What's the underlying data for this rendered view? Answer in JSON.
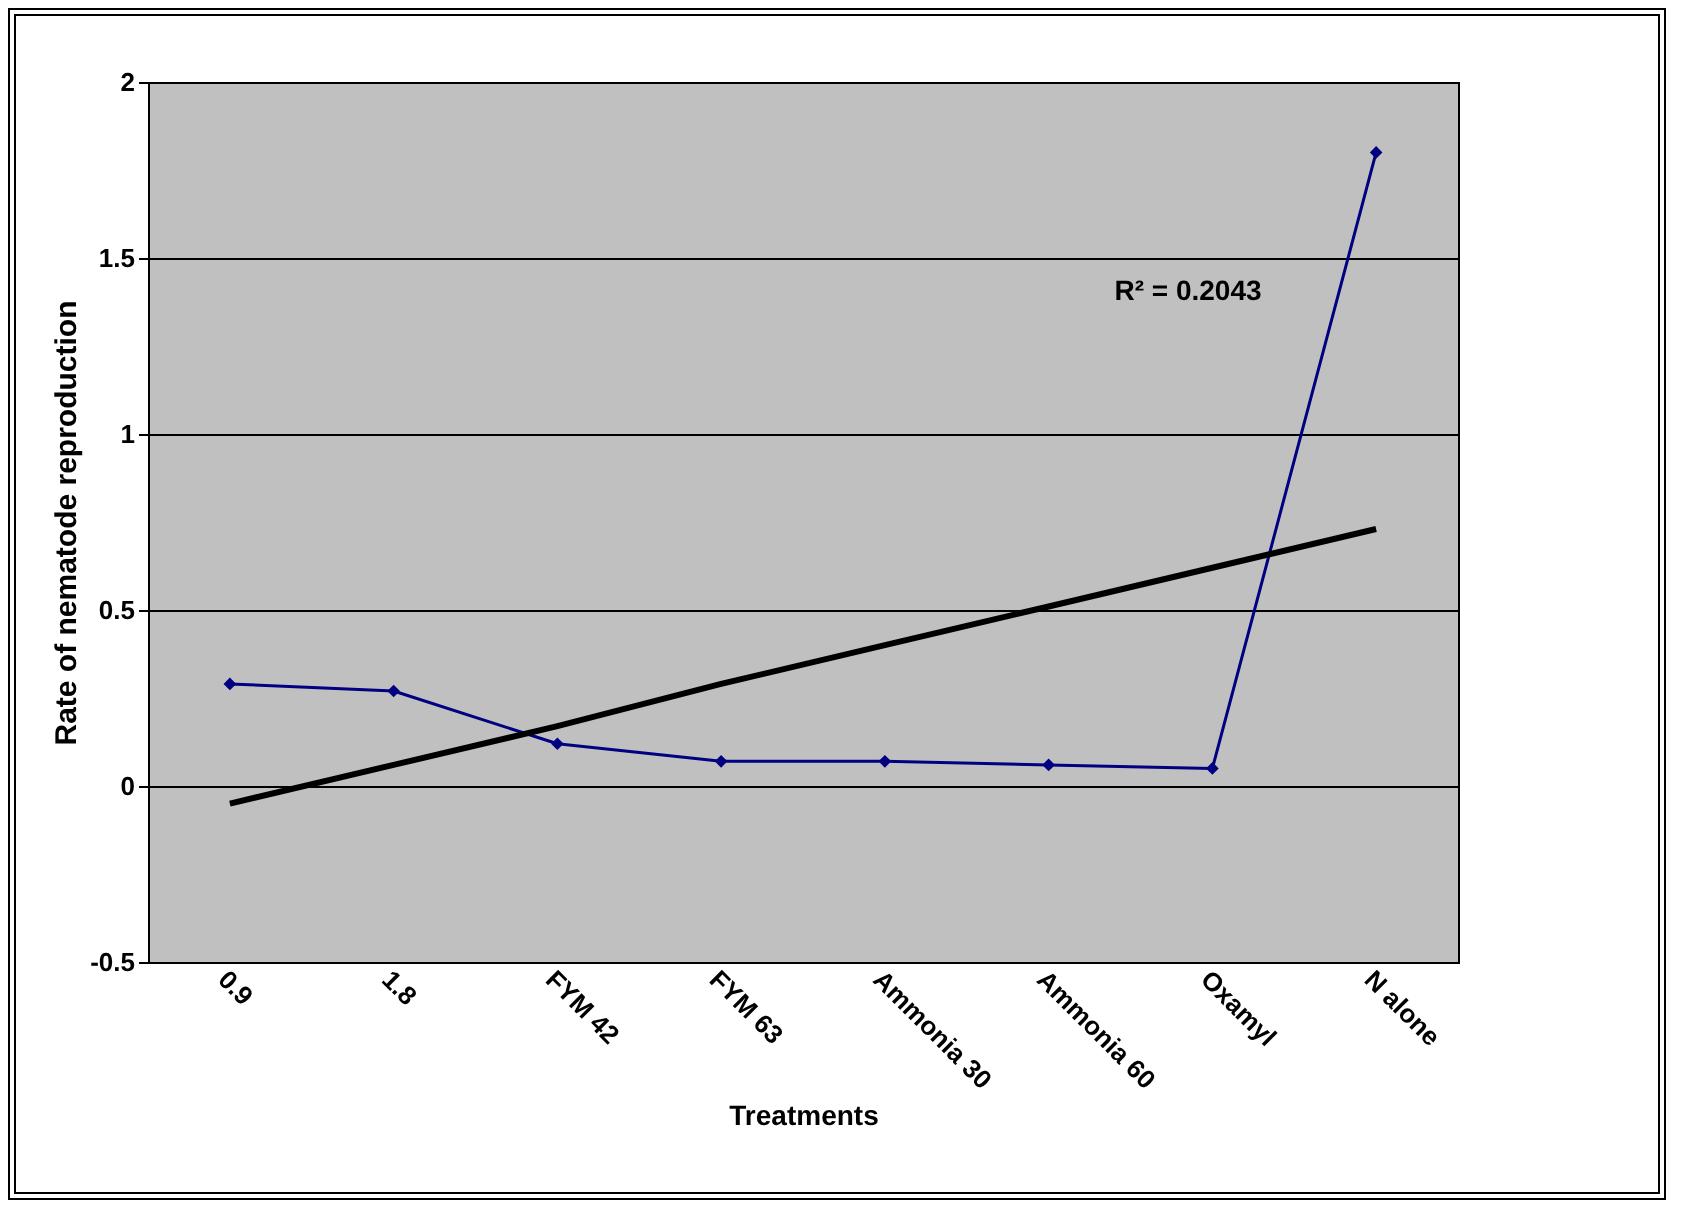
{
  "chart_data": {
    "type": "line",
    "xlabel": "Treatments",
    "ylabel": "Rate of nematode reproduction",
    "categories": [
      "0.9",
      "1.8",
      "FYM 42",
      "FYM 63",
      "Ammonia 30",
      "Ammonia 60",
      "Oxamyl",
      "N alone"
    ],
    "series": [
      {
        "color": "#000080",
        "marker": "diamond",
        "values": [
          0.29,
          0.27,
          0.12,
          0.07,
          0.07,
          0.06,
          0.05,
          1.8
        ]
      },
      {
        "color": "#000000",
        "marker": "none",
        "values": [
          -0.05,
          0.06,
          0.17,
          0.29,
          0.4,
          0.51,
          0.62,
          0.73
        ]
      }
    ],
    "annotations": [
      "R² = 0.2043"
    ],
    "ylim": [
      -0.5,
      2
    ],
    "yticks": [
      -0.5,
      0,
      0.5,
      1,
      1.5,
      2
    ],
    "grid": "y"
  }
}
